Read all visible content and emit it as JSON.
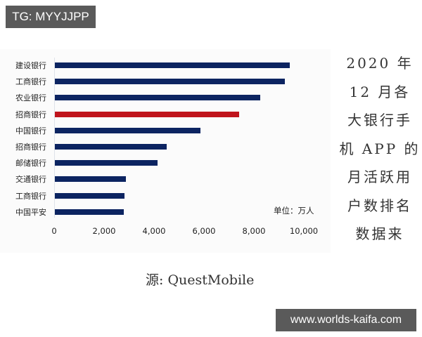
{
  "watermarks": {
    "top_left": "TG: MYYJJPP",
    "bottom_right": "www.worlds-kaifa.com"
  },
  "side_title_lines": [
    "2020 年",
    "12 月各",
    "大银行手",
    "机 APP 的",
    "月活跃用",
    "户数排名",
    "数据来"
  ],
  "source": "源: QuestMobile",
  "chart_data": {
    "type": "bar",
    "orientation": "horizontal",
    "title": "2020年12月各大银行手机APP的月活跃用户数排名",
    "xlabel": "",
    "ylabel": "",
    "unit_label": "单位：万人",
    "categories": [
      "建设银行",
      "工商银行",
      "农业银行",
      "招商银行",
      "中国银行",
      "招商银行",
      "邮储银行",
      "交通银行",
      "工商银行",
      "中国平安"
    ],
    "values": [
      9410,
      9220,
      8230,
      7390,
      5840,
      4470,
      4100,
      2840,
      2780,
      2750
    ],
    "highlight_index": 3,
    "colors": {
      "bar": "#0c2461",
      "highlight": "#c0141c"
    },
    "xlim": [
      0,
      10000
    ],
    "x_ticks": [
      "0",
      "2,000",
      "4,000",
      "6,000",
      "8,000",
      "10,000"
    ],
    "x_tick_values": [
      0,
      2000,
      4000,
      6000,
      8000,
      10000
    ],
    "grid": false,
    "legend": null
  }
}
